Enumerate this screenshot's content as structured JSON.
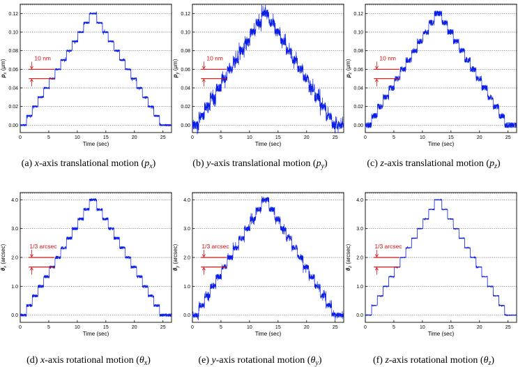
{
  "figure": {
    "colors": {
      "trace": "#0a1ee6",
      "annotation": "#d01010",
      "grid": "#555555",
      "axis": "#000000"
    }
  },
  "chart_data": [
    {
      "id": "a",
      "type": "line",
      "profile": "fine",
      "caption": {
        "prefix": "(a) ",
        "axis": "x",
        "rest": "-axis translational motion (",
        "sym": "p",
        "sub": "x",
        "close": ")"
      },
      "ylabel": {
        "sym": "p",
        "sub": "x",
        "unit": " (μm)"
      },
      "xlabel": "Time (sec)",
      "xlim": [
        0,
        26.5
      ],
      "ylim": [
        -0.008,
        0.13
      ],
      "xticks": [
        0,
        5,
        10,
        15,
        20,
        25
      ],
      "yticks": [
        0.0,
        0.02,
        0.04,
        0.06,
        0.08,
        0.1,
        0.12
      ],
      "ytick_labels": [
        "0.00",
        "0.02",
        "0.04",
        "0.06",
        "0.08",
        "0.10",
        "0.12"
      ],
      "noise": 0.0009,
      "annotation": {
        "text": "10 nm",
        "y_low": 0.05,
        "y_high": 0.06,
        "x_start": 1.5,
        "x_end": 6.0
      },
      "steps": [
        [
          0,
          0
        ],
        [
          1.1,
          0.01
        ],
        [
          2.1,
          0.02
        ],
        [
          3.1,
          0.03
        ],
        [
          4.1,
          0.04
        ],
        [
          5.1,
          0.05
        ],
        [
          6.1,
          0.06
        ],
        [
          7.1,
          0.07
        ],
        [
          8.1,
          0.08
        ],
        [
          9.1,
          0.09
        ],
        [
          10.1,
          0.1
        ],
        [
          11.1,
          0.11
        ],
        [
          12.1,
          0.12
        ],
        [
          13.4,
          0.11
        ],
        [
          14.4,
          0.1
        ],
        [
          15.4,
          0.09
        ],
        [
          16.4,
          0.08
        ],
        [
          17.4,
          0.07
        ],
        [
          18.4,
          0.06
        ],
        [
          19.4,
          0.05
        ],
        [
          20.4,
          0.04
        ],
        [
          21.4,
          0.03
        ],
        [
          22.4,
          0.02
        ],
        [
          23.4,
          0.01
        ],
        [
          24.4,
          0.0
        ],
        [
          25.4,
          0.0
        ]
      ]
    },
    {
      "id": "b",
      "type": "line",
      "profile": "noisy",
      "caption": {
        "prefix": "(b) ",
        "axis": "y",
        "rest": "-axis translational motion (",
        "sym": "p",
        "sub": "y",
        "close": ")"
      },
      "ylabel": {
        "sym": "p",
        "sub": "y",
        "unit": " (μm)"
      },
      "xlabel": "Time (sec)",
      "xlim": [
        0,
        26.5
      ],
      "ylim": [
        -0.008,
        0.13
      ],
      "xticks": [
        0,
        5,
        10,
        15,
        20,
        25
      ],
      "yticks": [
        0.0,
        0.02,
        0.04,
        0.06,
        0.08,
        0.1,
        0.12
      ],
      "ytick_labels": [
        "0.00",
        "0.02",
        "0.04",
        "0.06",
        "0.08",
        "0.10",
        "0.12"
      ],
      "noise": 0.0045,
      "annotation": {
        "text": "10 nm",
        "y_low": 0.05,
        "y_high": 0.06,
        "x_start": 1.5,
        "x_end": 6.0
      },
      "steps": [
        [
          0,
          0
        ],
        [
          1.1,
          0.01
        ],
        [
          2.1,
          0.02
        ],
        [
          3.1,
          0.03
        ],
        [
          4.1,
          0.04
        ],
        [
          5.1,
          0.05
        ],
        [
          6.1,
          0.06
        ],
        [
          7.1,
          0.07
        ],
        [
          8.1,
          0.08
        ],
        [
          9.1,
          0.09
        ],
        [
          10.1,
          0.1
        ],
        [
          11.1,
          0.11
        ],
        [
          12.1,
          0.12
        ],
        [
          13.4,
          0.11
        ],
        [
          14.4,
          0.1
        ],
        [
          15.4,
          0.09
        ],
        [
          16.4,
          0.08
        ],
        [
          17.4,
          0.07
        ],
        [
          18.4,
          0.06
        ],
        [
          19.4,
          0.05
        ],
        [
          20.4,
          0.04
        ],
        [
          21.4,
          0.03
        ],
        [
          22.4,
          0.02
        ],
        [
          23.4,
          0.01
        ],
        [
          24.4,
          0.0
        ],
        [
          25.4,
          0.0
        ]
      ]
    },
    {
      "id": "c",
      "type": "line",
      "profile": "medium",
      "caption": {
        "prefix": "(c) ",
        "axis": "z",
        "rest": "-axis translational motion (",
        "sym": "p",
        "sub": "z",
        "close": ")"
      },
      "ylabel": {
        "sym": "p",
        "sub": "z",
        "unit": " (μm)"
      },
      "xlabel": "Time (sec)",
      "xlim": [
        0,
        26.5
      ],
      "ylim": [
        -0.008,
        0.13
      ],
      "xticks": [
        0,
        5,
        10,
        15,
        20,
        25
      ],
      "yticks": [
        0.0,
        0.02,
        0.04,
        0.06,
        0.08,
        0.1,
        0.12
      ],
      "ytick_labels": [
        "0.00",
        "0.02",
        "0.04",
        "0.06",
        "0.08",
        "0.10",
        "0.12"
      ],
      "noise": 0.003,
      "annotation": {
        "text": "10 nm",
        "y_low": 0.05,
        "y_high": 0.06,
        "x_start": 1.5,
        "x_end": 6.0
      },
      "steps": [
        [
          0,
          0
        ],
        [
          1.1,
          0.01
        ],
        [
          2.1,
          0.02
        ],
        [
          3.1,
          0.03
        ],
        [
          4.1,
          0.04
        ],
        [
          5.1,
          0.05
        ],
        [
          6.1,
          0.06
        ],
        [
          7.1,
          0.07
        ],
        [
          8.1,
          0.08
        ],
        [
          9.1,
          0.09
        ],
        [
          10.1,
          0.1
        ],
        [
          11.1,
          0.11
        ],
        [
          12.1,
          0.12
        ],
        [
          13.4,
          0.11
        ],
        [
          14.4,
          0.1
        ],
        [
          15.4,
          0.09
        ],
        [
          16.4,
          0.08
        ],
        [
          17.4,
          0.07
        ],
        [
          18.4,
          0.06
        ],
        [
          19.4,
          0.05
        ],
        [
          20.4,
          0.04
        ],
        [
          21.4,
          0.03
        ],
        [
          22.4,
          0.02
        ],
        [
          23.4,
          0.01
        ],
        [
          24.4,
          0.0
        ],
        [
          25.4,
          0.0
        ]
      ]
    },
    {
      "id": "d",
      "type": "line",
      "profile": "medium",
      "caption": {
        "prefix": "(d) ",
        "axis": "x",
        "rest": "-axis rotational motion (",
        "sym": "θ",
        "sub": "x",
        "close": ")"
      },
      "ylabel": {
        "sym": "θ",
        "sub": "x",
        "unit": " (arcsec)"
      },
      "xlabel": "Time (sec)",
      "xlim": [
        0,
        26.5
      ],
      "ylim": [
        -0.25,
        4.25
      ],
      "xticks": [
        0,
        5,
        10,
        15,
        20,
        25
      ],
      "yticks": [
        0,
        1,
        2,
        3,
        4
      ],
      "ytick_labels": [
        "0.0",
        "1.0",
        "2.0",
        "3.0",
        "4.0"
      ],
      "noise": 0.05,
      "annotation": {
        "text": "1/3 arcsec",
        "y_low": 1.667,
        "y_high": 2.0,
        "x_start": 1.5,
        "x_end": 6.0
      },
      "steps": [
        [
          0,
          0
        ],
        [
          1.1,
          0.333
        ],
        [
          2.1,
          0.667
        ],
        [
          3.1,
          1.0
        ],
        [
          4.1,
          1.333
        ],
        [
          5.1,
          1.667
        ],
        [
          6.1,
          2.0
        ],
        [
          7.1,
          2.333
        ],
        [
          8.1,
          2.667
        ],
        [
          9.1,
          3.0
        ],
        [
          10.1,
          3.333
        ],
        [
          11.1,
          3.667
        ],
        [
          12.1,
          4.0
        ],
        [
          13.4,
          3.667
        ],
        [
          14.4,
          3.333
        ],
        [
          15.4,
          3.0
        ],
        [
          16.4,
          2.667
        ],
        [
          17.4,
          2.333
        ],
        [
          18.4,
          2.0
        ],
        [
          19.4,
          1.667
        ],
        [
          20.4,
          1.333
        ],
        [
          21.4,
          1.0
        ],
        [
          22.4,
          0.667
        ],
        [
          23.4,
          0.333
        ],
        [
          24.4,
          0.0
        ],
        [
          25.4,
          0.0
        ]
      ]
    },
    {
      "id": "e",
      "type": "line",
      "profile": "noisy",
      "caption": {
        "prefix": "(e) ",
        "axis": "y",
        "rest": "-axis rotational motion (",
        "sym": "θ",
        "sub": "y",
        "close": ")"
      },
      "ylabel": {
        "sym": "θ",
        "sub": "y",
        "unit": " (arcsec)"
      },
      "xlabel": "Time (sec)",
      "xlim": [
        0,
        26.5
      ],
      "ylim": [
        -0.25,
        4.25
      ],
      "xticks": [
        0,
        5,
        10,
        15,
        20,
        25
      ],
      "yticks": [
        0,
        1,
        2,
        3,
        4
      ],
      "ytick_labels": [
        "0.0",
        "1.0",
        "2.0",
        "3.0",
        "4.0"
      ],
      "noise": 0.09,
      "annotation": {
        "text": "1/3 arcsec",
        "y_low": 1.667,
        "y_high": 2.0,
        "x_start": 1.5,
        "x_end": 6.0
      },
      "steps": [
        [
          0,
          0
        ],
        [
          1.1,
          0.333
        ],
        [
          2.1,
          0.667
        ],
        [
          3.1,
          1.0
        ],
        [
          4.1,
          1.333
        ],
        [
          5.1,
          1.667
        ],
        [
          6.1,
          2.0
        ],
        [
          7.1,
          2.333
        ],
        [
          8.1,
          2.667
        ],
        [
          9.1,
          3.0
        ],
        [
          10.1,
          3.333
        ],
        [
          11.1,
          3.667
        ],
        [
          12.1,
          4.0
        ],
        [
          13.4,
          3.667
        ],
        [
          14.4,
          3.333
        ],
        [
          15.4,
          3.0
        ],
        [
          16.4,
          2.667
        ],
        [
          17.4,
          2.333
        ],
        [
          18.4,
          2.0
        ],
        [
          19.4,
          1.667
        ],
        [
          20.4,
          1.333
        ],
        [
          21.4,
          1.0
        ],
        [
          22.4,
          0.667
        ],
        [
          23.4,
          0.333
        ],
        [
          24.4,
          0.0
        ],
        [
          25.4,
          0.0
        ]
      ]
    },
    {
      "id": "f",
      "type": "line",
      "profile": "fine",
      "caption": {
        "prefix": "(f) ",
        "axis": "z",
        "rest": "-axis rotational motion (",
        "sym": "θ",
        "sub": "z",
        "close": ")"
      },
      "ylabel": {
        "sym": "θ",
        "sub": "z",
        "unit": " (arcsec)"
      },
      "xlabel": "Time (sec)",
      "xlim": [
        0,
        26.5
      ],
      "ylim": [
        -0.25,
        4.25
      ],
      "xticks": [
        0,
        5,
        10,
        15,
        20,
        25
      ],
      "yticks": [
        0,
        1,
        2,
        3,
        4
      ],
      "ytick_labels": [
        "0.0",
        "1.0",
        "2.0",
        "3.0",
        "4.0"
      ],
      "noise": 0.015,
      "annotation": {
        "text": "1/3 arcsec",
        "y_low": 1.667,
        "y_high": 2.0,
        "x_start": 1.5,
        "x_end": 6.0
      },
      "steps": [
        [
          0,
          0
        ],
        [
          1.1,
          0.333
        ],
        [
          2.1,
          0.667
        ],
        [
          3.1,
          1.0
        ],
        [
          4.1,
          1.333
        ],
        [
          5.1,
          1.667
        ],
        [
          6.1,
          2.0
        ],
        [
          7.1,
          2.333
        ],
        [
          8.1,
          2.667
        ],
        [
          9.1,
          3.0
        ],
        [
          10.1,
          3.333
        ],
        [
          11.1,
          3.667
        ],
        [
          12.1,
          4.0
        ],
        [
          13.4,
          3.667
        ],
        [
          14.4,
          3.333
        ],
        [
          15.4,
          3.0
        ],
        [
          16.4,
          2.667
        ],
        [
          17.4,
          2.333
        ],
        [
          18.4,
          2.0
        ],
        [
          19.4,
          1.667
        ],
        [
          20.4,
          1.333
        ],
        [
          21.4,
          1.0
        ],
        [
          22.4,
          0.667
        ],
        [
          23.4,
          0.333
        ],
        [
          24.4,
          0.0
        ],
        [
          25.4,
          0.0
        ]
      ]
    }
  ]
}
